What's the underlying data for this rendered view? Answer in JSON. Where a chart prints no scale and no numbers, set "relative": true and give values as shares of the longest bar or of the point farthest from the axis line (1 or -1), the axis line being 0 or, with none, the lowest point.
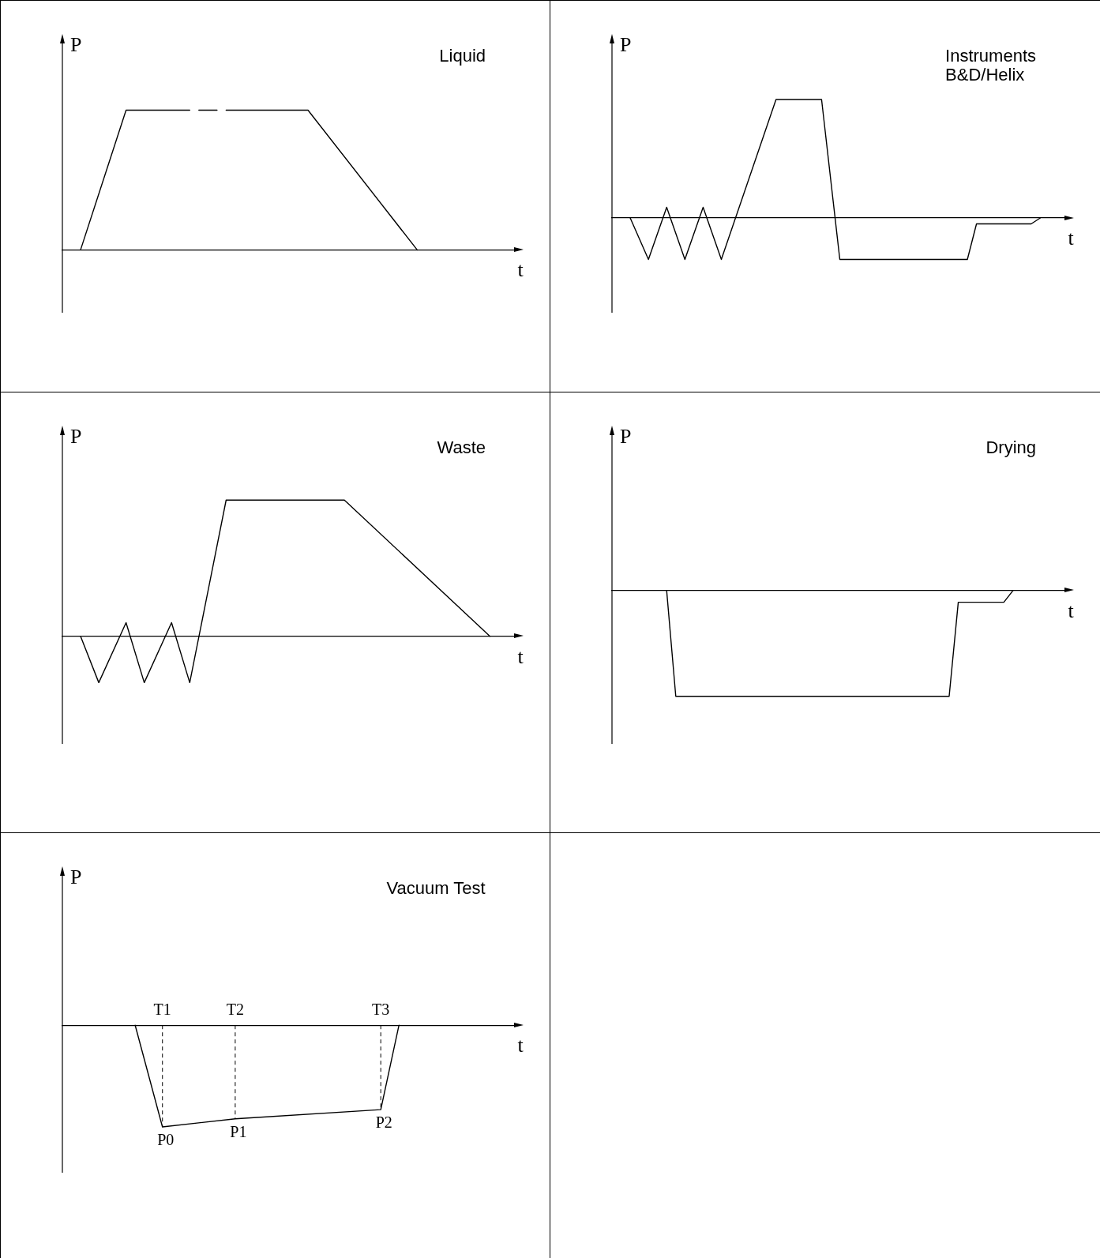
{
  "chart_data": [
    {
      "type": "line",
      "title": "Liquid",
      "xlabel": "t",
      "ylabel": "P",
      "relative": true,
      "marker": "none",
      "categories": [
        null,
        null,
        null,
        null,
        null,
        null,
        null,
        null,
        null,
        null,
        null,
        null,
        null,
        null,
        null,
        null,
        null,
        null,
        null,
        null,
        null,
        null,
        null,
        null,
        null,
        null,
        null,
        null,
        null,
        null,
        null,
        null,
        null,
        null,
        null,
        null,
        null,
        null,
        null,
        null,
        null,
        null,
        null,
        null,
        null,
        null,
        null,
        null,
        null,
        null,
        null
      ],
      "series": [
        {
          "color": "#000000",
          "values": [
            null,
            null,
            0,
            null,
            null,
            null,
            null,
            1,
            null,
            null,
            null,
            null,
            null,
            null,
            1,
            null,
            null,
            null,
            null,
            null,
            null,
            null,
            null,
            null,
            null,
            null,
            null,
            null,
            null,
            null,
            null,
            null,
            null,
            null,
            null,
            null,
            null,
            null,
            null,
            null,
            null,
            null,
            null,
            null,
            null,
            null,
            null,
            null,
            null,
            null,
            null
          ]
        },
        {
          "color": "#000000",
          "values": [
            null,
            null,
            null,
            null,
            null,
            null,
            null,
            null,
            null,
            null,
            null,
            null,
            null,
            null,
            null,
            1,
            null,
            1,
            null,
            null,
            null,
            null,
            null,
            null,
            null,
            null,
            null,
            null,
            null,
            null,
            null,
            null,
            null,
            null,
            null,
            null,
            null,
            null,
            null,
            null,
            null,
            null,
            null,
            null,
            null,
            null,
            null,
            null,
            null,
            null,
            null
          ]
        },
        {
          "color": "#000000",
          "values": [
            null,
            null,
            null,
            null,
            null,
            null,
            null,
            null,
            null,
            null,
            null,
            null,
            null,
            null,
            null,
            null,
            null,
            null,
            1,
            null,
            null,
            null,
            null,
            null,
            null,
            null,
            null,
            1,
            null,
            null,
            null,
            null,
            null,
            null,
            null,
            null,
            null,
            null,
            null,
            0,
            null,
            null,
            null,
            null,
            null,
            null,
            null,
            null,
            null,
            null,
            null
          ]
        }
      ]
    },
    {
      "type": "line",
      "title": "Instruments\nB&D/Helix",
      "xlabel": "t",
      "ylabel": "P",
      "relative": true,
      "marker": "none",
      "categories": [
        null,
        null,
        null,
        null,
        null,
        null,
        null,
        null,
        null,
        null,
        null,
        null,
        null,
        null,
        null,
        null,
        null,
        null,
        null,
        null,
        null,
        null,
        null,
        null,
        null,
        null,
        null,
        null,
        null,
        null,
        null,
        null,
        null,
        null,
        null,
        null,
        null,
        null,
        null,
        null,
        null,
        null,
        null,
        null,
        null,
        null,
        null,
        null,
        null,
        null,
        null
      ],
      "series": [
        {
          "color": "#000000",
          "values": [
            null,
            null,
            0,
            null,
            -0.35,
            null,
            0.09,
            null,
            -0.35,
            null,
            0.09,
            null,
            -0.35,
            null,
            null,
            null,
            null,
            null,
            1,
            null,
            null,
            null,
            null,
            1,
            null,
            -0.35,
            null,
            null,
            null,
            null,
            null,
            null,
            null,
            null,
            null,
            null,
            null,
            null,
            null,
            -0.35,
            -0.05,
            null,
            null,
            null,
            null,
            null,
            -0.05,
            0,
            null,
            null,
            null
          ]
        }
      ]
    },
    {
      "type": "line",
      "title": "Waste",
      "xlabel": "t",
      "ylabel": "P",
      "relative": true,
      "marker": "none",
      "categories": [
        null,
        null,
        null,
        null,
        null,
        null,
        null,
        null,
        null,
        null,
        null,
        null,
        null,
        null,
        null,
        null,
        null,
        null,
        null,
        null,
        null,
        null,
        null,
        null,
        null,
        null,
        null,
        null,
        null,
        null,
        null,
        null,
        null,
        null,
        null,
        null,
        null,
        null,
        null,
        null,
        null,
        null,
        null,
        null,
        null,
        null,
        null,
        null,
        null,
        null,
        null
      ],
      "series": [
        {
          "color": "#000000",
          "values": [
            null,
            null,
            0,
            null,
            -0.34,
            null,
            null,
            0.1,
            null,
            -0.34,
            null,
            null,
            0.1,
            null,
            -0.34,
            null,
            null,
            null,
            1,
            null,
            null,
            null,
            null,
            null,
            null,
            null,
            null,
            null,
            null,
            null,
            null,
            1,
            null,
            null,
            null,
            null,
            null,
            null,
            null,
            null,
            null,
            null,
            null,
            null,
            null,
            null,
            null,
            0,
            null,
            null,
            null
          ]
        }
      ]
    },
    {
      "type": "line",
      "title": "Drying",
      "xlabel": "t",
      "ylabel": "P",
      "relative": true,
      "marker": "none",
      "categories": [
        null,
        null,
        null,
        null,
        null,
        null,
        null,
        null,
        null,
        null,
        null,
        null,
        null,
        null,
        null,
        null,
        null,
        null,
        null,
        null,
        null,
        null,
        null,
        null,
        null,
        null,
        null,
        null,
        null,
        null,
        null,
        null,
        null,
        null,
        null,
        null,
        null,
        null,
        null,
        null,
        null,
        null,
        null,
        null,
        null,
        null,
        null,
        null,
        null,
        null,
        null
      ],
      "series": [
        {
          "color": "#000000",
          "values": [
            null,
            null,
            null,
            null,
            null,
            null,
            0,
            -1,
            null,
            null,
            null,
            null,
            null,
            null,
            null,
            null,
            null,
            null,
            null,
            null,
            null,
            null,
            null,
            null,
            null,
            null,
            null,
            null,
            null,
            null,
            null,
            null,
            null,
            null,
            null,
            null,
            null,
            -1,
            -0.11,
            null,
            null,
            null,
            null,
            -0.11,
            0,
            null,
            null,
            null,
            null,
            null,
            null
          ]
        }
      ]
    },
    {
      "type": "line",
      "title": "Vacuum Test",
      "xlabel": "t",
      "ylabel": "P",
      "relative": true,
      "marker": "none",
      "categories": [
        null,
        null,
        null,
        null,
        null,
        null,
        null,
        null,
        null,
        null,
        null,
        "T1",
        null,
        null,
        null,
        null,
        null,
        null,
        null,
        "T2",
        null,
        null,
        null,
        null,
        null,
        null,
        null,
        null,
        null,
        null,
        null,
        null,
        null,
        null,
        null,
        "T3",
        null,
        null,
        null,
        null,
        null,
        null,
        null,
        null,
        null,
        null,
        null,
        null,
        null,
        null,
        null
      ],
      "series": [
        {
          "color": "#000000",
          "values": [
            null,
            null,
            null,
            null,
            null,
            null,
            null,
            null,
            0,
            null,
            null,
            -1,
            null,
            null,
            null,
            null,
            null,
            null,
            null,
            -0.92,
            null,
            null,
            null,
            null,
            null,
            null,
            null,
            null,
            null,
            null,
            null,
            null,
            null,
            null,
            null,
            -0.83,
            null,
            0,
            null,
            null,
            null,
            null,
            null,
            null,
            null,
            null,
            null,
            null,
            null,
            null,
            null
          ]
        }
      ],
      "ref_lines": [
        {
          "axis": "x",
          "value": "T1",
          "label": "P0",
          "line_style": "dashed"
        },
        {
          "axis": "x",
          "value": "T2",
          "label": "P1",
          "line_style": "dashed"
        },
        {
          "axis": "x",
          "value": "T3",
          "label": "P2",
          "line_style": "dashed"
        }
      ]
    }
  ]
}
